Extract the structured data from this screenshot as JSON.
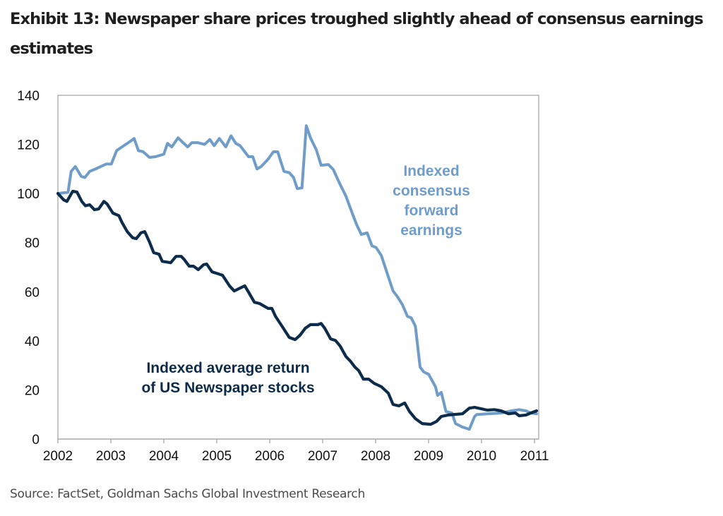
{
  "header": {
    "title": "Exhibit 13: Newspaper share prices troughed slightly ahead of consensus earnings estimates"
  },
  "footer": {
    "source": "Source: FactSet, Goldman Sachs Global Investment Research"
  },
  "chart_data": {
    "type": "line",
    "title": "Exhibit 13: Newspaper share prices troughed slightly ahead of consensus earnings estimates",
    "xlabel": "",
    "ylabel": "",
    "xlim": [
      2002,
      2011.09
    ],
    "ylim": [
      0,
      140
    ],
    "x_ticks": [
      "2002",
      "2003",
      "2004",
      "2005",
      "2006",
      "2007",
      "2008",
      "2009",
      "2010",
      "2011"
    ],
    "y_ticks": [
      "0",
      "20",
      "40",
      "60",
      "80",
      "100",
      "120",
      "140"
    ],
    "grid": false,
    "legend": "none (inline annotations)",
    "series": [
      {
        "name": "Indexed consensus forward earnings",
        "annotation_lines": [
          "Indexed",
          "consensus",
          "forward",
          "earnings"
        ],
        "color": "#6f9cc8",
        "points": [
          [
            2002.0,
            100.0
          ],
          [
            2002.19,
            100.5
          ],
          [
            2002.25,
            109.0
          ],
          [
            2002.33,
            111.0
          ],
          [
            2002.44,
            107.0
          ],
          [
            2002.51,
            106.5
          ],
          [
            2002.6,
            109.0
          ],
          [
            2002.71,
            110.0
          ],
          [
            2002.77,
            110.6
          ],
          [
            2002.91,
            112.0
          ],
          [
            2003.01,
            112.0
          ],
          [
            2003.11,
            117.5
          ],
          [
            2003.17,
            118.4
          ],
          [
            2003.28,
            120.0
          ],
          [
            2003.35,
            121.0
          ],
          [
            2003.44,
            122.4
          ],
          [
            2003.52,
            117.5
          ],
          [
            2003.61,
            117.0
          ],
          [
            2003.73,
            114.7
          ],
          [
            2003.84,
            115.0
          ],
          [
            2004.0,
            116.0
          ],
          [
            2004.07,
            120.4
          ],
          [
            2004.15,
            119.0
          ],
          [
            2004.27,
            122.7
          ],
          [
            2004.35,
            121.0
          ],
          [
            2004.45,
            119.0
          ],
          [
            2004.53,
            120.7
          ],
          [
            2004.64,
            120.7
          ],
          [
            2004.77,
            120.0
          ],
          [
            2004.87,
            122.0
          ],
          [
            2004.95,
            119.5
          ],
          [
            2005.05,
            122.4
          ],
          [
            2005.17,
            119.0
          ],
          [
            2005.27,
            123.5
          ],
          [
            2005.36,
            120.4
          ],
          [
            2005.44,
            119.5
          ],
          [
            2005.6,
            115.0
          ],
          [
            2005.68,
            115.0
          ],
          [
            2005.76,
            110.0
          ],
          [
            2005.84,
            111.0
          ],
          [
            2005.97,
            114.0
          ],
          [
            2006.07,
            117.0
          ],
          [
            2006.15,
            117.0
          ],
          [
            2006.27,
            109.0
          ],
          [
            2006.37,
            108.5
          ],
          [
            2006.45,
            106.5
          ],
          [
            2006.52,
            102.0
          ],
          [
            2006.61,
            102.3
          ],
          [
            2006.69,
            127.6
          ],
          [
            2006.77,
            122.7
          ],
          [
            2006.88,
            117.8
          ],
          [
            2006.97,
            111.5
          ],
          [
            2007.11,
            111.8
          ],
          [
            2007.2,
            109.8
          ],
          [
            2007.31,
            104.6
          ],
          [
            2007.44,
            98.9
          ],
          [
            2007.55,
            92.5
          ],
          [
            2007.64,
            87.4
          ],
          [
            2007.73,
            83.3
          ],
          [
            2007.84,
            84.0
          ],
          [
            2007.93,
            78.7
          ],
          [
            2008.01,
            78.0
          ],
          [
            2008.11,
            74.7
          ],
          [
            2008.21,
            68.0
          ],
          [
            2008.33,
            60.3
          ],
          [
            2008.41,
            58.0
          ],
          [
            2008.51,
            54.6
          ],
          [
            2008.6,
            50.0
          ],
          [
            2008.67,
            49.4
          ],
          [
            2008.75,
            46.0
          ],
          [
            2008.84,
            29.3
          ],
          [
            2008.91,
            27.3
          ],
          [
            2009.0,
            26.4
          ],
          [
            2009.13,
            21.3
          ],
          [
            2009.17,
            17.8
          ],
          [
            2009.24,
            19.0
          ],
          [
            2009.33,
            11.2
          ],
          [
            2009.44,
            10.6
          ],
          [
            2009.51,
            6.3
          ],
          [
            2009.64,
            4.9
          ],
          [
            2009.77,
            4.0
          ],
          [
            2009.87,
            9.2
          ],
          [
            2009.91,
            10.0
          ],
          [
            2010.11,
            10.3
          ],
          [
            2010.37,
            10.6
          ],
          [
            2010.57,
            11.5
          ],
          [
            2010.71,
            12.0
          ],
          [
            2010.84,
            11.5
          ],
          [
            2010.93,
            10.6
          ],
          [
            2011.04,
            10.3
          ]
        ]
      },
      {
        "name": "Indexed average return of US Newspaper stocks",
        "annotation_lines": [
          "Indexed average return",
          "of US Newspaper stocks"
        ],
        "color": "#0d2b4a",
        "points": [
          [
            2002.0,
            100.0
          ],
          [
            2002.11,
            97.4
          ],
          [
            2002.17,
            96.8
          ],
          [
            2002.28,
            100.9
          ],
          [
            2002.36,
            100.6
          ],
          [
            2002.45,
            96.8
          ],
          [
            2002.52,
            95.0
          ],
          [
            2002.6,
            95.4
          ],
          [
            2002.69,
            93.4
          ],
          [
            2002.77,
            93.7
          ],
          [
            2002.87,
            96.8
          ],
          [
            2002.93,
            95.7
          ],
          [
            2003.04,
            92.0
          ],
          [
            2003.15,
            91.0
          ],
          [
            2003.21,
            88.2
          ],
          [
            2003.31,
            84.5
          ],
          [
            2003.41,
            82.0
          ],
          [
            2003.48,
            81.6
          ],
          [
            2003.57,
            84.0
          ],
          [
            2003.64,
            84.5
          ],
          [
            2003.73,
            80.2
          ],
          [
            2003.81,
            75.9
          ],
          [
            2003.91,
            75.3
          ],
          [
            2003.97,
            72.4
          ],
          [
            2004.13,
            71.8
          ],
          [
            2004.23,
            74.4
          ],
          [
            2004.33,
            74.4
          ],
          [
            2004.39,
            73.0
          ],
          [
            2004.48,
            70.4
          ],
          [
            2004.56,
            70.4
          ],
          [
            2004.65,
            69.0
          ],
          [
            2004.75,
            71.0
          ],
          [
            2004.81,
            71.3
          ],
          [
            2004.91,
            68.1
          ],
          [
            2005.0,
            67.5
          ],
          [
            2005.11,
            66.7
          ],
          [
            2005.24,
            62.4
          ],
          [
            2005.33,
            60.3
          ],
          [
            2005.44,
            61.5
          ],
          [
            2005.53,
            62.4
          ],
          [
            2005.61,
            59.5
          ],
          [
            2005.71,
            55.7
          ],
          [
            2005.81,
            55.2
          ],
          [
            2005.97,
            53.2
          ],
          [
            2006.04,
            53.2
          ],
          [
            2006.11,
            50.0
          ],
          [
            2006.24,
            45.7
          ],
          [
            2006.37,
            41.4
          ],
          [
            2006.48,
            40.5
          ],
          [
            2006.57,
            42.2
          ],
          [
            2006.67,
            45.1
          ],
          [
            2006.77,
            46.6
          ],
          [
            2006.91,
            46.6
          ],
          [
            2006.97,
            47.1
          ],
          [
            2007.04,
            45.1
          ],
          [
            2007.15,
            40.8
          ],
          [
            2007.24,
            40.2
          ],
          [
            2007.33,
            37.9
          ],
          [
            2007.44,
            33.6
          ],
          [
            2007.53,
            31.6
          ],
          [
            2007.61,
            29.3
          ],
          [
            2007.68,
            27.9
          ],
          [
            2007.77,
            24.4
          ],
          [
            2007.87,
            24.4
          ],
          [
            2007.97,
            22.7
          ],
          [
            2008.11,
            21.3
          ],
          [
            2008.24,
            18.7
          ],
          [
            2008.33,
            14.1
          ],
          [
            2008.44,
            13.5
          ],
          [
            2008.55,
            14.7
          ],
          [
            2008.64,
            11.2
          ],
          [
            2008.75,
            8.3
          ],
          [
            2008.88,
            6.3
          ],
          [
            2009.04,
            6.0
          ],
          [
            2009.15,
            7.2
          ],
          [
            2009.24,
            9.2
          ],
          [
            2009.37,
            9.8
          ],
          [
            2009.64,
            10.3
          ],
          [
            2009.77,
            12.6
          ],
          [
            2009.87,
            12.9
          ],
          [
            2010.11,
            11.8
          ],
          [
            2010.24,
            12.0
          ],
          [
            2010.37,
            11.5
          ],
          [
            2010.51,
            10.3
          ],
          [
            2010.64,
            10.6
          ],
          [
            2010.71,
            9.5
          ],
          [
            2010.84,
            9.8
          ],
          [
            2010.93,
            10.6
          ],
          [
            2011.04,
            11.5
          ]
        ]
      }
    ]
  }
}
